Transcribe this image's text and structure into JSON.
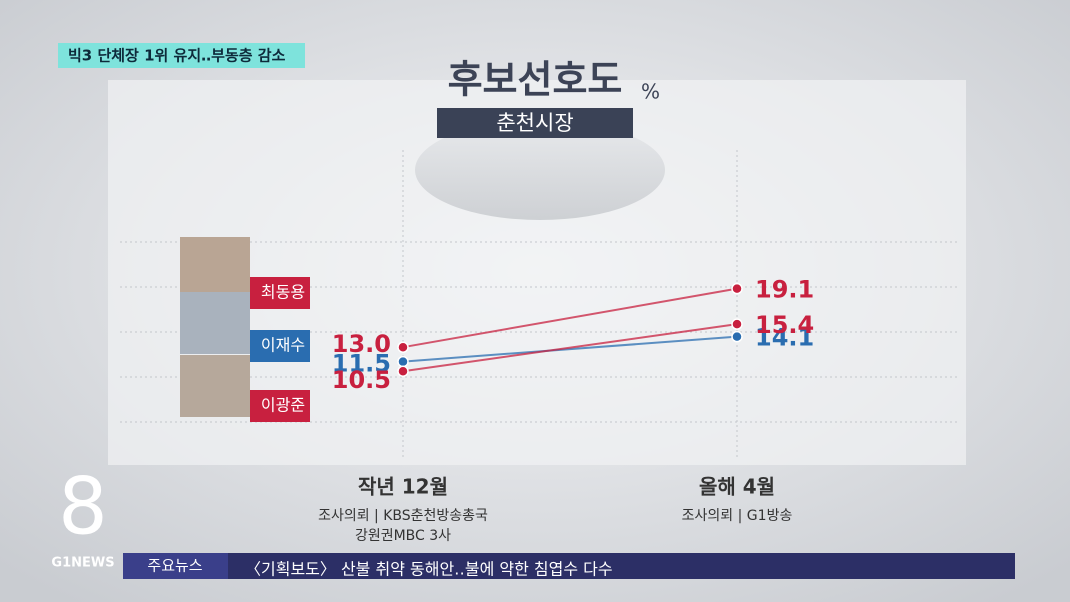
{
  "banner": "빅3 단체장 1위 유지‥부동층 감소",
  "chart_data": {
    "type": "line",
    "title": "후보선호도",
    "unit": "%",
    "subtitle": "춘천시장",
    "categories": [
      "작년 12월",
      "올해 4월"
    ],
    "category_notes": [
      [
        "조사의뢰 | KBS춘천방송총국",
        "강원권MBC 3사"
      ],
      [
        "조사의뢰 | G1방송"
      ]
    ],
    "series": [
      {
        "name": "최동용",
        "color": "#c8203f",
        "values": [
          13.0,
          19.1
        ],
        "value_labels": [
          "13.0",
          "19.1"
        ]
      },
      {
        "name": "이재수",
        "color": "#2a6db0",
        "values": [
          11.5,
          14.1
        ],
        "value_labels": [
          "11.5",
          "14.1"
        ]
      },
      {
        "name": "이광준",
        "color": "#c8203f",
        "values": [
          10.5,
          15.4
        ],
        "value_labels": [
          "10.5",
          "15.4"
        ]
      }
    ],
    "ylim": [
      0,
      25
    ]
  },
  "logo": {
    "mark": "8",
    "brand": "G1NEWS"
  },
  "ticker": {
    "label": "주요뉴스",
    "text": "〈기획보도〉 산불 취약 동해안‥불에 약한 침엽수 다수"
  }
}
